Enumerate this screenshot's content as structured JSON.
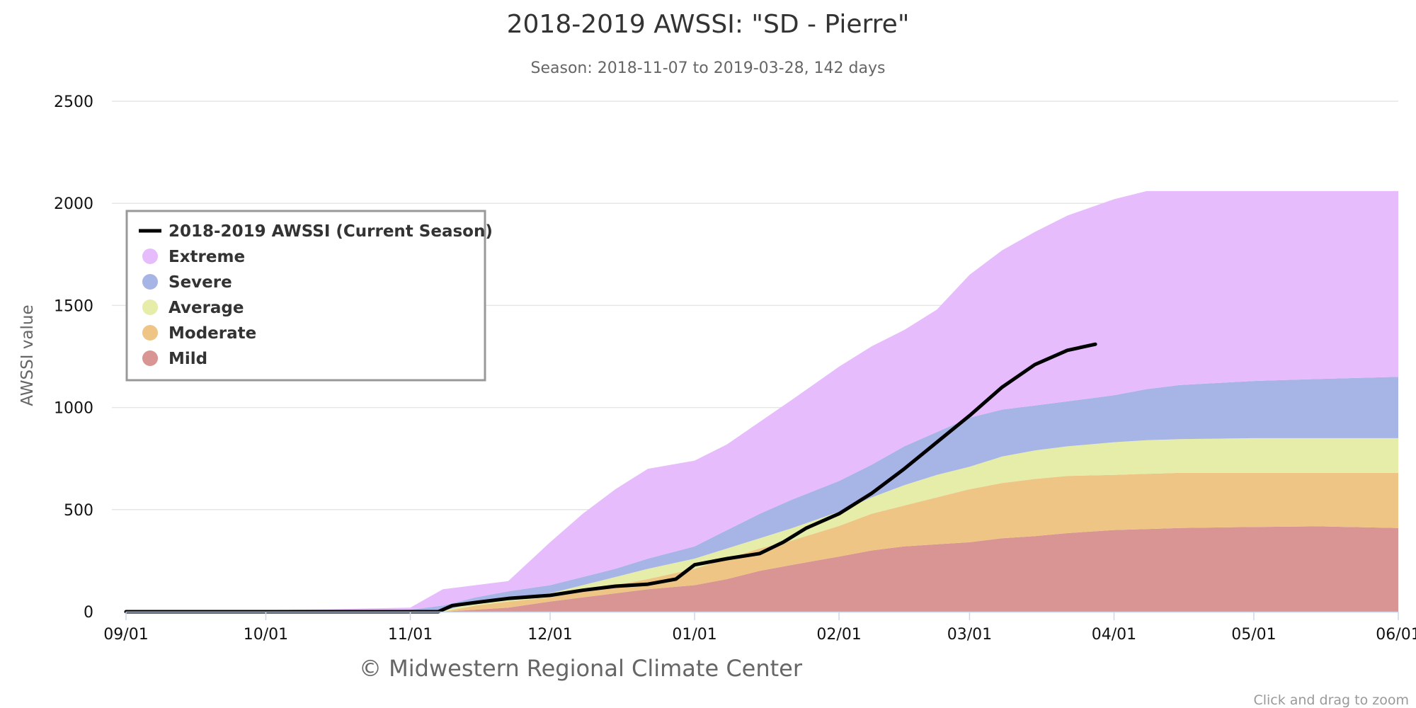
{
  "chart_data": {
    "type": "area",
    "title": "2018-2019 AWSSI: \"SD - Pierre\"",
    "subtitle": "Season: 2018-11-07 to 2019-03-28, 142 days",
    "ylabel": "AWSSI value",
    "ylim": [
      0,
      2500
    ],
    "yticks": [
      0,
      500,
      1000,
      1500,
      2000,
      2500
    ],
    "xlim": [
      "2018-09-01",
      "2019-06-01"
    ],
    "xticks": [
      {
        "date": "2018-09-01",
        "label": "09/01"
      },
      {
        "date": "2018-10-01",
        "label": "10/01"
      },
      {
        "date": "2018-11-01",
        "label": "11/01"
      },
      {
        "date": "2018-12-01",
        "label": "12/01"
      },
      {
        "date": "2019-01-01",
        "label": "01/01"
      },
      {
        "date": "2019-02-01",
        "label": "02/01"
      },
      {
        "date": "2019-03-01",
        "label": "03/01"
      },
      {
        "date": "2019-04-01",
        "label": "04/01"
      },
      {
        "date": "2019-05-01",
        "label": "05/01"
      },
      {
        "date": "2019-06-01",
        "label": "06/01"
      }
    ],
    "grid": true,
    "legend_position": "top-left",
    "band_dates": [
      "2018-09-01",
      "2018-10-01",
      "2018-10-15",
      "2018-11-01",
      "2018-11-08",
      "2018-11-15",
      "2018-11-22",
      "2018-12-01",
      "2018-12-08",
      "2018-12-15",
      "2018-12-22",
      "2019-01-01",
      "2019-01-08",
      "2019-01-15",
      "2019-01-22",
      "2019-02-01",
      "2019-02-08",
      "2019-02-15",
      "2019-02-22",
      "2019-03-01",
      "2019-03-08",
      "2019-03-15",
      "2019-03-22",
      "2019-04-01",
      "2019-04-08",
      "2019-04-15",
      "2019-05-01",
      "2019-05-15",
      "2019-06-01"
    ],
    "bands": [
      {
        "name": "Mild",
        "color": "#d99494",
        "lower": [
          0,
          0,
          0,
          0,
          0,
          0,
          0,
          0,
          0,
          0,
          0,
          0,
          0,
          0,
          0,
          0,
          0,
          0,
          0,
          0,
          0,
          0,
          0,
          0,
          0,
          0,
          0,
          0,
          0
        ],
        "upper": [
          0,
          0,
          0,
          0,
          0,
          10,
          20,
          50,
          70,
          90,
          110,
          130,
          160,
          200,
          230,
          270,
          300,
          320,
          330,
          340,
          360,
          370,
          385,
          400,
          405,
          410,
          415,
          418,
          410
        ]
      },
      {
        "name": "Moderate",
        "color": "#eec584",
        "lower": [
          0,
          0,
          0,
          0,
          0,
          10,
          20,
          50,
          70,
          90,
          110,
          130,
          160,
          200,
          230,
          270,
          300,
          320,
          330,
          340,
          360,
          370,
          385,
          400,
          405,
          410,
          415,
          418,
          410
        ],
        "upper": [
          0,
          0,
          0,
          0,
          0,
          30,
          50,
          70,
          100,
          130,
          160,
          210,
          260,
          310,
          350,
          420,
          480,
          520,
          560,
          600,
          630,
          650,
          665,
          670,
          675,
          680,
          680,
          680,
          680
        ]
      },
      {
        "name": "Average",
        "color": "#e6eda8",
        "lower": [
          0,
          0,
          0,
          0,
          0,
          30,
          50,
          70,
          100,
          130,
          160,
          210,
          260,
          310,
          350,
          420,
          480,
          520,
          560,
          600,
          630,
          650,
          665,
          670,
          675,
          680,
          680,
          680,
          680
        ],
        "upper": [
          0,
          0,
          0,
          0,
          5,
          45,
          65,
          90,
          130,
          170,
          210,
          260,
          310,
          360,
          410,
          490,
          560,
          620,
          670,
          710,
          760,
          790,
          810,
          830,
          840,
          845,
          850,
          850,
          850
        ]
      },
      {
        "name": "Severe",
        "color": "#a7b4e6",
        "lower": [
          0,
          0,
          0,
          0,
          5,
          45,
          65,
          90,
          130,
          170,
          210,
          260,
          310,
          360,
          410,
          490,
          560,
          620,
          670,
          710,
          760,
          790,
          810,
          830,
          840,
          845,
          850,
          850,
          850
        ],
        "upper": [
          0,
          2,
          5,
          10,
          30,
          70,
          100,
          130,
          170,
          210,
          260,
          320,
          400,
          480,
          550,
          640,
          720,
          810,
          880,
          950,
          990,
          1010,
          1030,
          1060,
          1090,
          1110,
          1130,
          1140,
          1150
        ]
      },
      {
        "name": "Extreme",
        "color": "#e6bcfc",
        "lower": [
          0,
          2,
          5,
          10,
          30,
          70,
          100,
          130,
          170,
          210,
          260,
          320,
          400,
          480,
          550,
          640,
          720,
          810,
          880,
          950,
          990,
          1010,
          1030,
          1060,
          1090,
          1110,
          1130,
          1140,
          1150
        ],
        "upper": [
          0,
          8,
          12,
          20,
          110,
          130,
          150,
          340,
          480,
          600,
          700,
          740,
          820,
          930,
          1040,
          1200,
          1300,
          1380,
          1480,
          1650,
          1770,
          1860,
          1940,
          2020,
          2060,
          2060,
          2060,
          2060,
          2060
        ]
      }
    ],
    "series": [
      {
        "name": "2018-2019 AWSSI (Current Season)",
        "color": "#000000",
        "dates": [
          "2018-09-01",
          "2018-11-07",
          "2018-11-10",
          "2018-11-15",
          "2018-11-22",
          "2018-12-01",
          "2018-12-08",
          "2018-12-15",
          "2018-12-22",
          "2018-12-28",
          "2019-01-01",
          "2019-01-08",
          "2019-01-15",
          "2019-01-20",
          "2019-01-25",
          "2019-02-01",
          "2019-02-08",
          "2019-02-15",
          "2019-02-22",
          "2019-03-01",
          "2019-03-08",
          "2019-03-15",
          "2019-03-22",
          "2019-03-28"
        ],
        "values": [
          0,
          0,
          30,
          45,
          65,
          80,
          105,
          125,
          135,
          160,
          230,
          260,
          285,
          340,
          410,
          480,
          580,
          700,
          830,
          960,
          1100,
          1210,
          1280,
          1310
        ]
      }
    ],
    "credit": "© Midwestern Regional Climate Center",
    "zoom_hint": "Click and drag to zoom"
  }
}
